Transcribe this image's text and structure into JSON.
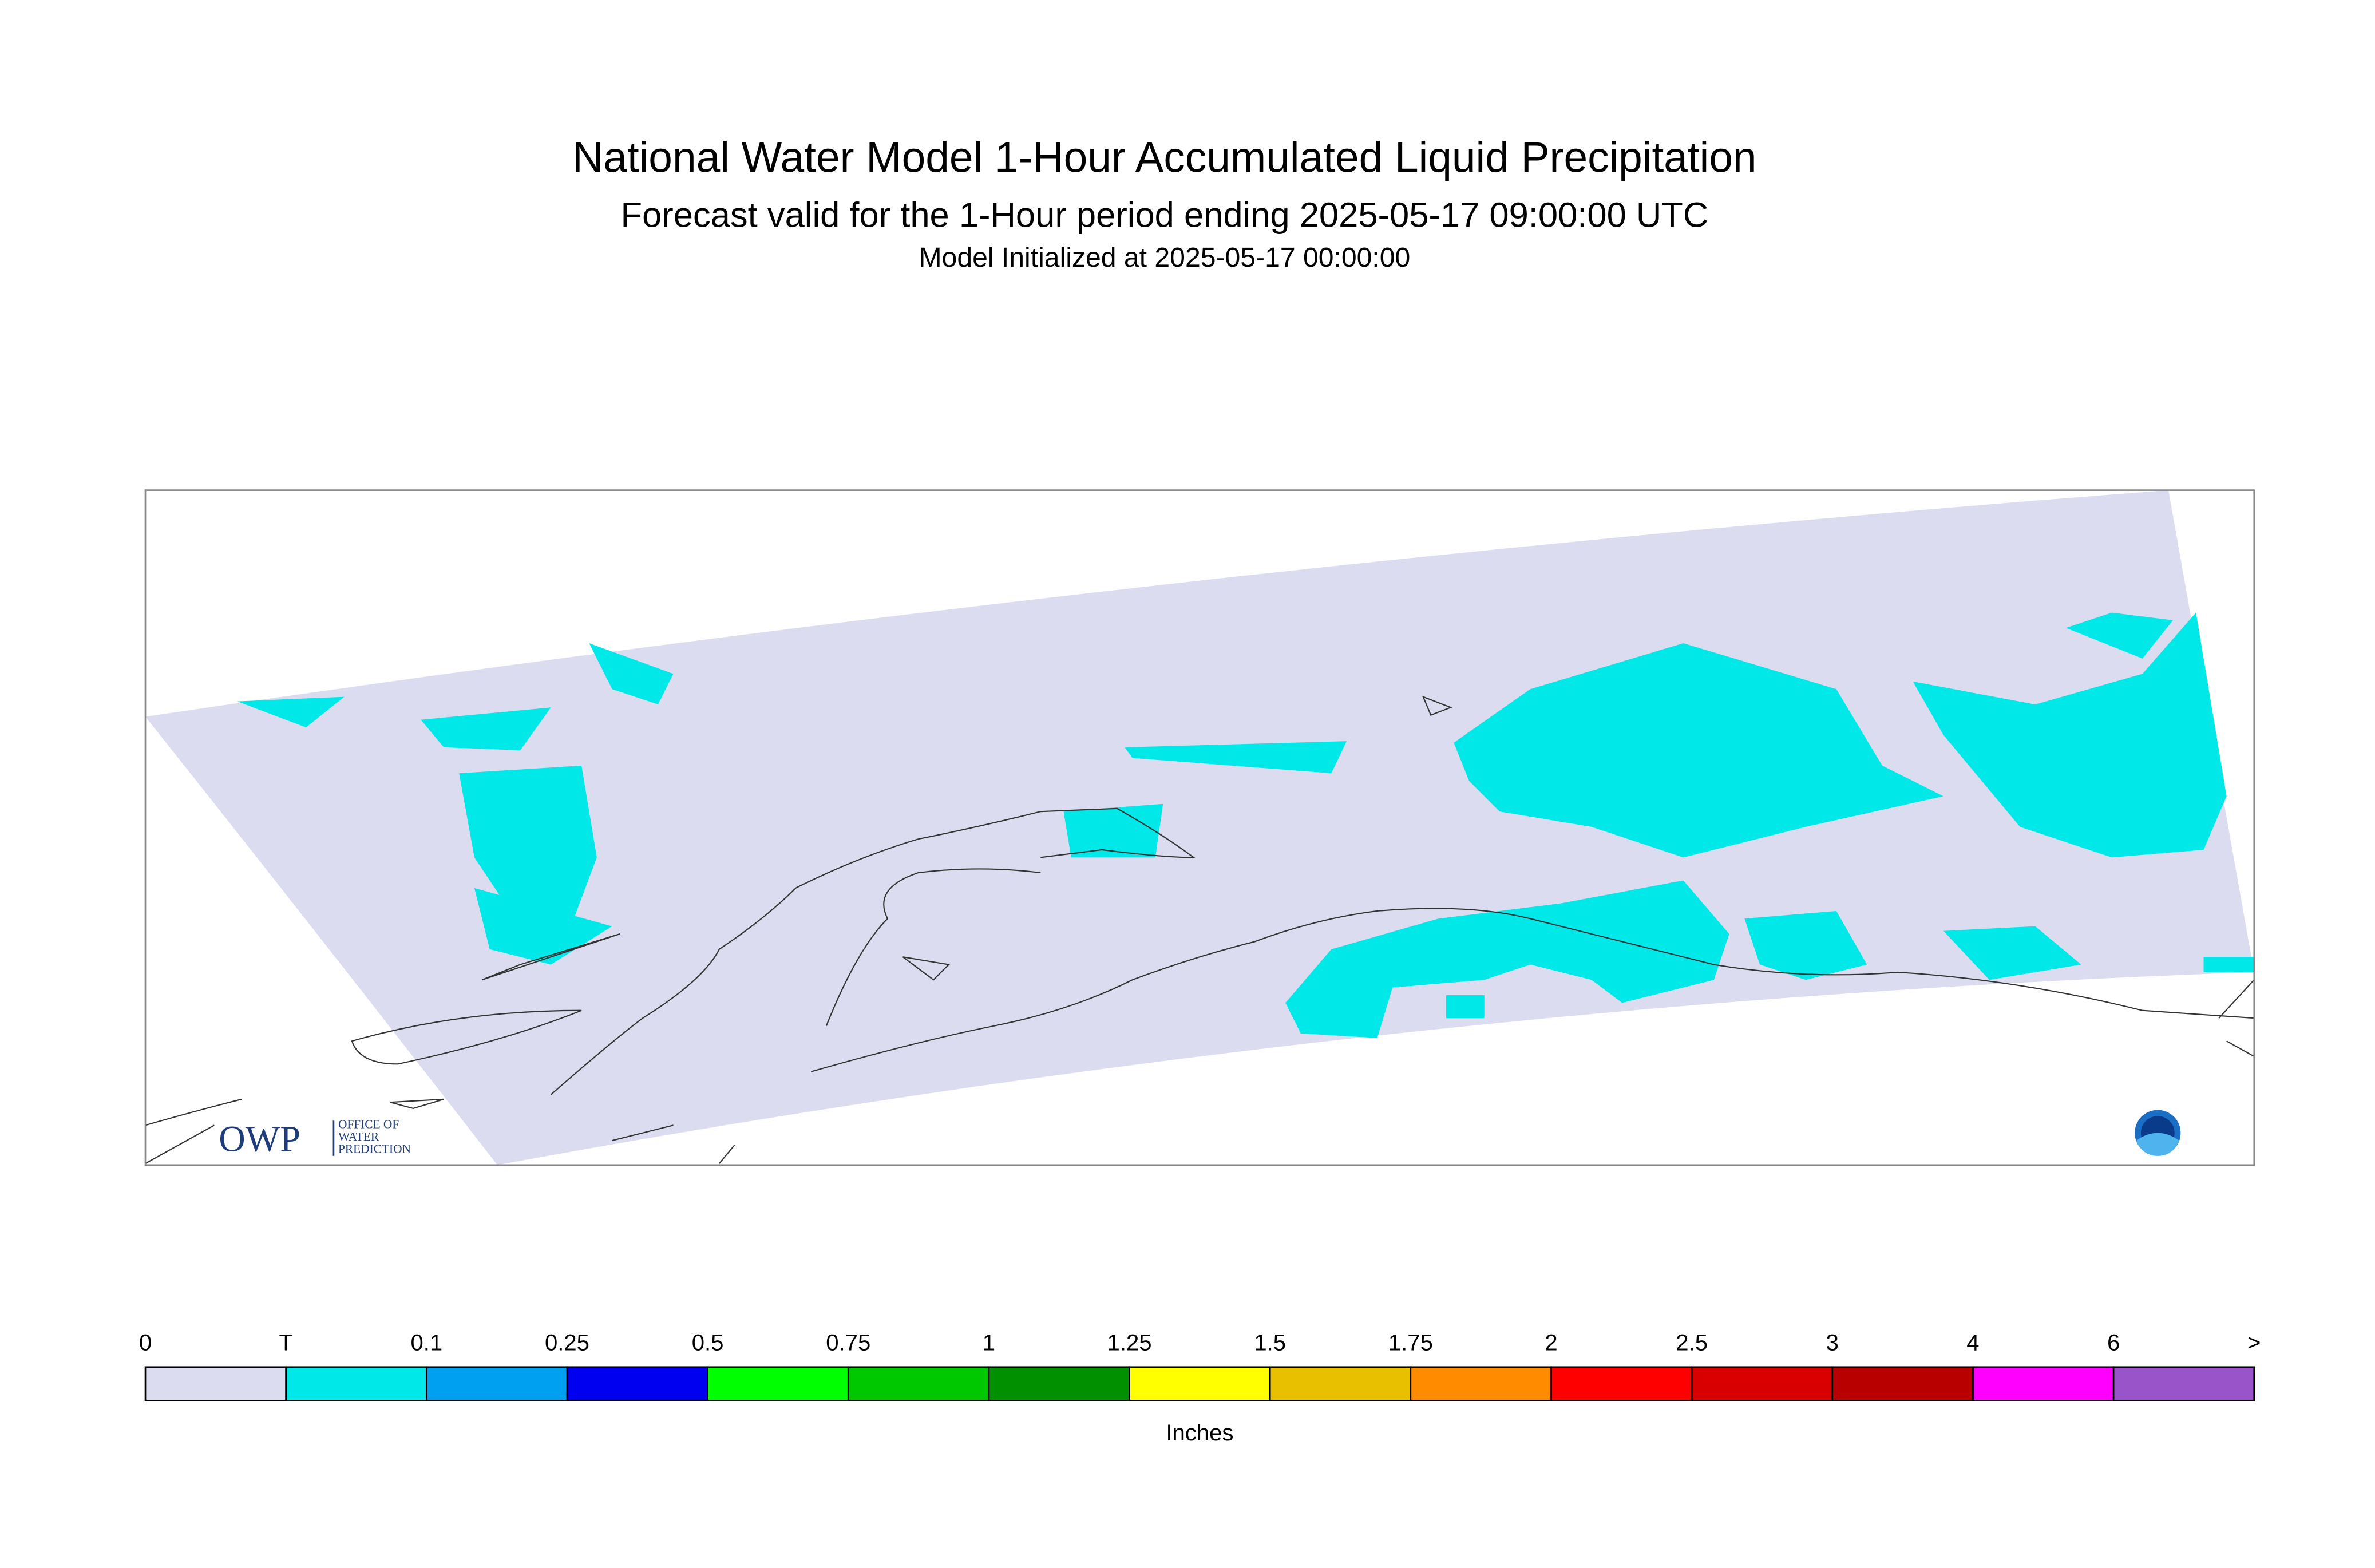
{
  "header": {
    "title": "National Water Model 1-Hour Accumulated Liquid Precipitation",
    "subtitle": "Forecast valid for the 1-Hour period ending 2025-05-17 09:00:00 UTC",
    "initialized": "Model Initialized at 2025-05-17 00:00:00"
  },
  "legend": {
    "labels": [
      "0",
      "T",
      "0.1",
      "0.25",
      "0.5",
      "0.75",
      "1",
      "1.25",
      "1.5",
      "1.75",
      "2",
      "2.5",
      "3",
      "4",
      "6",
      ">"
    ],
    "colors": [
      "#dcdcf0",
      "#00e8e8",
      "#00a0f0",
      "#0000f0",
      "#00ff00",
      "#00c800",
      "#009000",
      "#ffff00",
      "#e8c000",
      "#ff8c00",
      "#ff0000",
      "#d80000",
      "#b80000",
      "#ff00ff",
      "#9854c8"
    ],
    "unit": "Inches"
  },
  "logo": {
    "name": "OWP",
    "office": [
      "OFFICE OF",
      "WATER",
      "PREDICTION"
    ]
  }
}
